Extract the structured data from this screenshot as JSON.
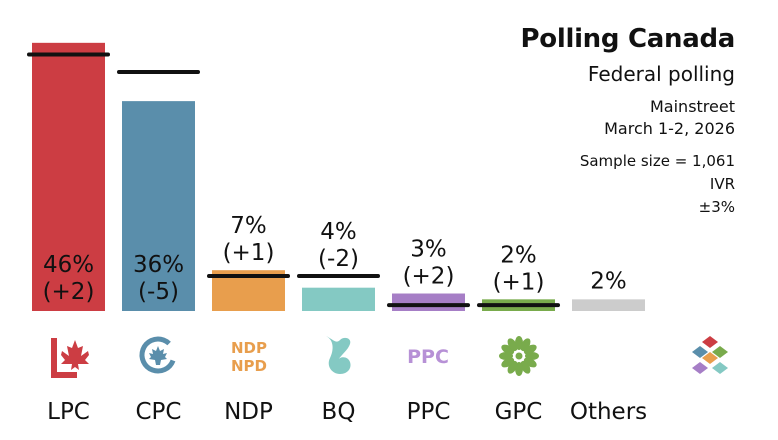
{
  "header": {
    "title": "Polling Canada",
    "subtitle": "Federal polling",
    "pollster": "Mainstreet",
    "dates": "March 1-2, 2026",
    "sample_size": "Sample size = 1,061",
    "method": "IVR",
    "margin_of_error": "±3%"
  },
  "chart_data": {
    "type": "bar",
    "title": "Polling Canada",
    "subtitle": "Federal polling",
    "categories": [
      "LPC",
      "CPC",
      "NDP",
      "BQ",
      "PPC",
      "GPC",
      "Others"
    ],
    "values": [
      46,
      36,
      7,
      4,
      3,
      2,
      2
    ],
    "changes": [
      "(+2)",
      "(-5)",
      "(+1)",
      "(-2)",
      "(+2)",
      "(+1)",
      ""
    ],
    "value_labels": [
      "46%",
      "36%",
      "7%",
      "4%",
      "3%",
      "2%",
      "2%"
    ],
    "previous_values": [
      44,
      41,
      6,
      6,
      1,
      1,
      null
    ],
    "colors": [
      "#cc3d43",
      "#5a8eab",
      "#e89e4d",
      "#84c9c3",
      "#a67ec6",
      "#79ab4c",
      "#cccccc"
    ],
    "ylim": [
      0,
      47
    ],
    "grid": false,
    "legend": "none"
  },
  "logos": {
    "LPC": "maple-leaf-l-icon",
    "CPC": "c-maple-leaf-icon",
    "NDP": {
      "icon": "ndp-wordmark-icon",
      "line1": "NDP",
      "line2": "NPD"
    },
    "BQ": "bq-fleur-icon",
    "PPC": {
      "icon": "ppc-wordmark-icon",
      "text": "PPC"
    },
    "GPC": "gpc-flower-icon",
    "source": "polling-canada-logo-icon"
  }
}
